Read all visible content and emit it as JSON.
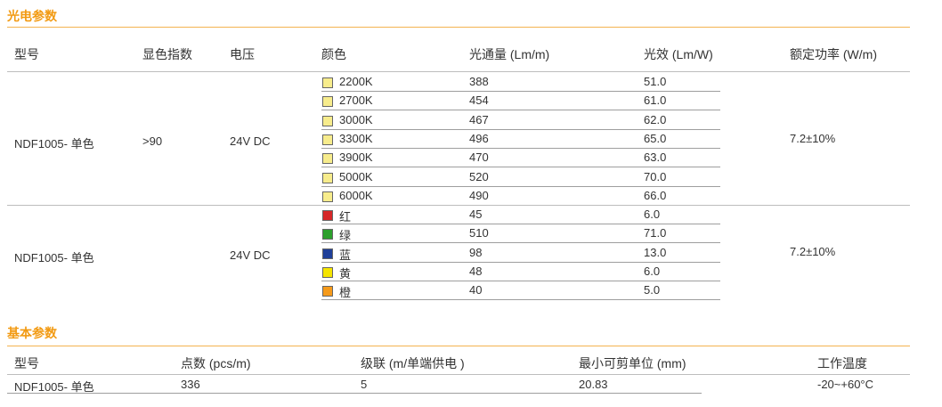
{
  "section1": {
    "title": "光电参数",
    "headers": [
      "型号",
      "显色指数",
      "电压",
      "颜色",
      "光通量 (Lm/m)",
      "光效 (Lm/W)",
      "额定功率 (W/m)"
    ],
    "group1": {
      "model": "NDF1005- 单色",
      "cri": ">90",
      "voltage": "24V DC",
      "power": "7.2±10%",
      "rows": [
        {
          "color": "2200K",
          "swatch": "#f7ec8c",
          "flux": "388",
          "efficacy": "51.0"
        },
        {
          "color": "2700K",
          "swatch": "#f7ec8c",
          "flux": "454",
          "efficacy": "61.0"
        },
        {
          "color": "3000K",
          "swatch": "#f7ec8c",
          "flux": "467",
          "efficacy": "62.0"
        },
        {
          "color": "3300K",
          "swatch": "#f7ec8c",
          "flux": "496",
          "efficacy": "65.0"
        },
        {
          "color": "3900K",
          "swatch": "#f7ec8c",
          "flux": "470",
          "efficacy": "63.0"
        },
        {
          "color": "5000K",
          "swatch": "#f7ec8c",
          "flux": "520",
          "efficacy": "70.0"
        },
        {
          "color": "6000K",
          "swatch": "#f7ec8c",
          "flux": "490",
          "efficacy": "66.0"
        }
      ]
    },
    "group2": {
      "model": "NDF1005- 单色",
      "voltage": "24V DC",
      "power": "7.2±10%",
      "rows": [
        {
          "color": "红",
          "swatch": "#d62728",
          "flux": "45",
          "efficacy": "6.0"
        },
        {
          "color": "绿",
          "swatch": "#2ca02c",
          "flux": "510",
          "efficacy": "71.0"
        },
        {
          "color": "蓝",
          "swatch": "#1f3f99",
          "flux": "98",
          "efficacy": "13.0"
        },
        {
          "color": "黄",
          "swatch": "#f5e400",
          "flux": "48",
          "efficacy": "6.0"
        },
        {
          "color": "橙",
          "swatch": "#f59a1a",
          "flux": "40",
          "efficacy": "5.0"
        }
      ]
    }
  },
  "section2": {
    "title": "基本参数",
    "headers": [
      "型号",
      "点数 (pcs/m)",
      "级联 (m/单端供电 )",
      "最小可剪单位 (mm)",
      "工作温度"
    ],
    "row": [
      "NDF1005- 单色",
      "336",
      "5",
      "20.83",
      "-20~+60°C"
    ]
  }
}
